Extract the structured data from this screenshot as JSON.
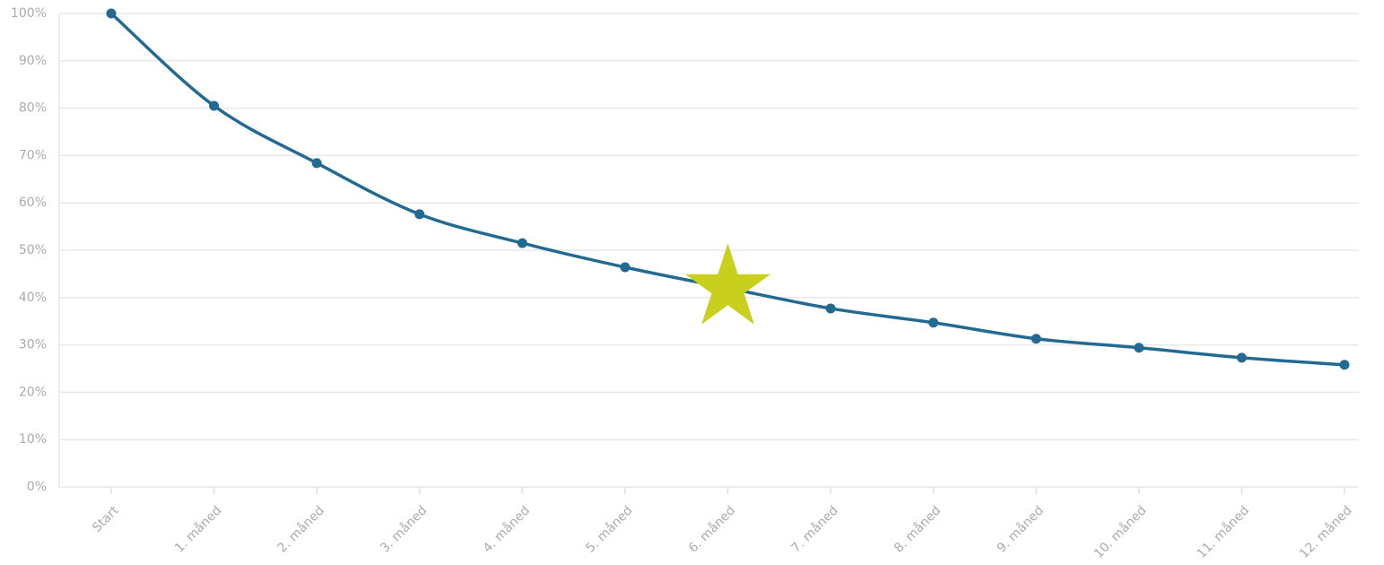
{
  "chart_data": {
    "type": "line",
    "categories": [
      "Start",
      "1. måned",
      "2. måned",
      "3. måned",
      "4. måned",
      "5. måned",
      "6. måned",
      "7. måned",
      "8. måned",
      "9. måned",
      "10. måned",
      "11. måned",
      "12. måned"
    ],
    "series": [
      {
        "color": "#236a93",
        "values": [
          100,
          80.5,
          68.4,
          57.6,
          51.5,
          46.4,
          42,
          37.7,
          34.7,
          31.3,
          29.4,
          27.3,
          25.8
        ]
      }
    ],
    "highlight": {
      "index": 6,
      "marker": "star",
      "color": "#c8cf1c"
    },
    "ylim": [
      0,
      100
    ],
    "yticks": [
      {
        "value": 0,
        "label": "0%"
      },
      {
        "value": 10,
        "label": "10%"
      },
      {
        "value": 20,
        "label": "20%"
      },
      {
        "value": 30,
        "label": "30%"
      },
      {
        "value": 40,
        "label": "40%"
      },
      {
        "value": 50,
        "label": "50%"
      },
      {
        "value": 60,
        "label": "60%"
      },
      {
        "value": 70,
        "label": "70%"
      },
      {
        "value": 80,
        "label": "80%"
      },
      {
        "value": 90,
        "label": "90%"
      },
      {
        "value": 100,
        "label": "100%"
      }
    ],
    "grid": true
  }
}
